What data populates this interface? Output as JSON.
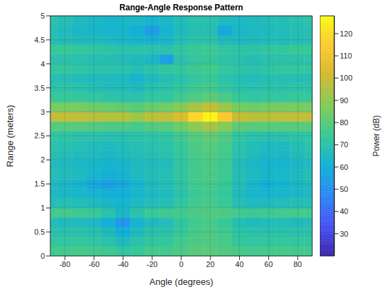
{
  "chart_data": {
    "type": "heatmap",
    "title": "Range-Angle Response Pattern",
    "x_label": "Angle (degrees)",
    "y_label": "Range (meters)",
    "x": [
      -90,
      -80,
      -70,
      -60,
      -50,
      -40,
      -30,
      -20,
      -10,
      0,
      10,
      20,
      30,
      40,
      50,
      60,
      70,
      80,
      90
    ],
    "y": [
      0.1,
      0.3,
      0.5,
      0.7,
      0.9,
      1.1,
      1.3,
      1.5,
      1.7,
      1.9,
      2.1,
      2.3,
      2.5,
      2.7,
      2.9,
      3.1,
      3.3,
      3.5,
      3.7,
      3.9,
      4.1,
      4.3,
      4.5,
      4.7,
      4.9
    ],
    "values": [
      [
        76,
        76,
        77,
        76,
        75,
        72,
        74,
        76,
        76,
        78,
        80,
        80,
        79,
        77,
        76,
        76,
        77,
        76,
        76
      ],
      [
        72,
        72,
        73,
        72,
        70,
        66,
        70,
        72,
        73,
        76,
        78,
        79,
        77,
        73,
        72,
        72,
        73,
        72,
        72
      ],
      [
        70,
        70,
        70,
        69,
        66,
        60,
        66,
        70,
        70,
        74,
        77,
        78,
        76,
        71,
        70,
        70,
        70,
        70,
        70
      ],
      [
        67,
        66,
        66,
        65,
        60,
        52,
        62,
        66,
        67,
        72,
        76,
        77,
        74,
        68,
        66,
        67,
        67,
        66,
        67
      ],
      [
        76,
        76,
        75,
        74,
        70,
        64,
        70,
        74,
        75,
        76,
        78,
        79,
        78,
        76,
        75,
        75,
        76,
        76,
        76
      ],
      [
        68,
        68,
        67,
        66,
        64,
        62,
        65,
        67,
        68,
        72,
        76,
        77,
        74,
        68,
        66,
        66,
        67,
        68,
        68
      ],
      [
        65,
        64,
        63,
        62,
        60,
        60,
        63,
        65,
        66,
        70,
        75,
        76,
        73,
        66,
        63,
        62,
        63,
        64,
        65
      ],
      [
        66,
        64,
        62,
        58,
        55,
        58,
        63,
        66,
        67,
        71,
        76,
        77,
        74,
        67,
        63,
        61,
        62,
        64,
        66
      ],
      [
        68,
        67,
        66,
        63,
        60,
        62,
        65,
        67,
        68,
        72,
        76,
        78,
        75,
        68,
        65,
        63,
        64,
        66,
        68
      ],
      [
        66,
        65,
        64,
        63,
        62,
        63,
        65,
        66,
        67,
        72,
        76,
        78,
        75,
        67,
        64,
        62,
        62,
        64,
        66
      ],
      [
        68,
        67,
        66,
        65,
        64,
        65,
        67,
        68,
        69,
        73,
        77,
        79,
        76,
        69,
        66,
        64,
        64,
        66,
        68
      ],
      [
        70,
        69,
        68,
        67,
        66,
        67,
        68,
        69,
        70,
        74,
        78,
        80,
        77,
        70,
        67,
        65,
        66,
        68,
        70
      ],
      [
        72,
        71,
        70,
        70,
        69,
        69,
        70,
        71,
        72,
        76,
        80,
        82,
        79,
        72,
        70,
        69,
        70,
        71,
        72
      ],
      [
        80,
        80,
        80,
        79,
        78,
        78,
        77,
        79,
        80,
        84,
        90,
        94,
        88,
        81,
        80,
        80,
        80,
        80,
        80
      ],
      [
        98,
        98,
        98,
        97,
        96,
        96,
        92,
        97,
        98,
        104,
        118,
        126,
        114,
        99,
        97,
        97,
        98,
        98,
        98
      ],
      [
        86,
        86,
        86,
        84,
        83,
        82,
        80,
        83,
        85,
        88,
        94,
        98,
        92,
        85,
        84,
        85,
        86,
        86,
        86
      ],
      [
        74,
        74,
        73,
        72,
        71,
        70,
        70,
        72,
        73,
        76,
        79,
        81,
        78,
        74,
        72,
        73,
        73,
        74,
        74
      ],
      [
        70,
        70,
        69,
        68,
        67,
        67,
        66,
        69,
        70,
        72,
        75,
        76,
        72,
        70,
        69,
        70,
        70,
        70,
        70
      ],
      [
        68,
        68,
        67,
        66,
        66,
        65,
        62,
        66,
        68,
        70,
        73,
        74,
        70,
        68,
        67,
        68,
        68,
        68,
        68
      ],
      [
        72,
        72,
        71,
        70,
        70,
        70,
        68,
        70,
        72,
        73,
        75,
        76,
        73,
        71,
        70,
        71,
        72,
        72,
        72
      ],
      [
        70,
        70,
        69,
        68,
        68,
        67,
        66,
        64,
        56,
        70,
        72,
        73,
        71,
        69,
        68,
        69,
        70,
        70,
        70
      ],
      [
        74,
        74,
        73,
        72,
        71,
        70,
        70,
        70,
        70,
        72,
        74,
        75,
        72,
        71,
        71,
        72,
        73,
        74,
        74
      ],
      [
        68,
        67,
        66,
        66,
        65,
        64,
        63,
        62,
        64,
        68,
        70,
        70,
        66,
        65,
        66,
        67,
        67,
        68,
        68
      ],
      [
        68,
        66,
        64,
        63,
        62,
        63,
        60,
        54,
        62,
        66,
        68,
        68,
        58,
        64,
        65,
        66,
        67,
        68,
        68
      ],
      [
        70,
        68,
        66,
        64,
        63,
        64,
        64,
        62,
        64,
        67,
        69,
        69,
        66,
        65,
        66,
        67,
        68,
        69,
        70
      ]
    ],
    "xlim": [
      -90,
      90
    ],
    "ylim": [
      0,
      5
    ],
    "xticks": [
      -80,
      -60,
      -40,
      -20,
      0,
      20,
      40,
      60,
      80
    ],
    "yticks": [
      0,
      0.5,
      1,
      1.5,
      2,
      2.5,
      3,
      3.5,
      4,
      4.5,
      5
    ],
    "grid": true,
    "colorbar": {
      "label": "Power (dB)",
      "lim": [
        20,
        128
      ],
      "ticks": [
        30,
        40,
        50,
        60,
        70,
        80,
        90,
        100,
        110,
        120
      ]
    }
  }
}
